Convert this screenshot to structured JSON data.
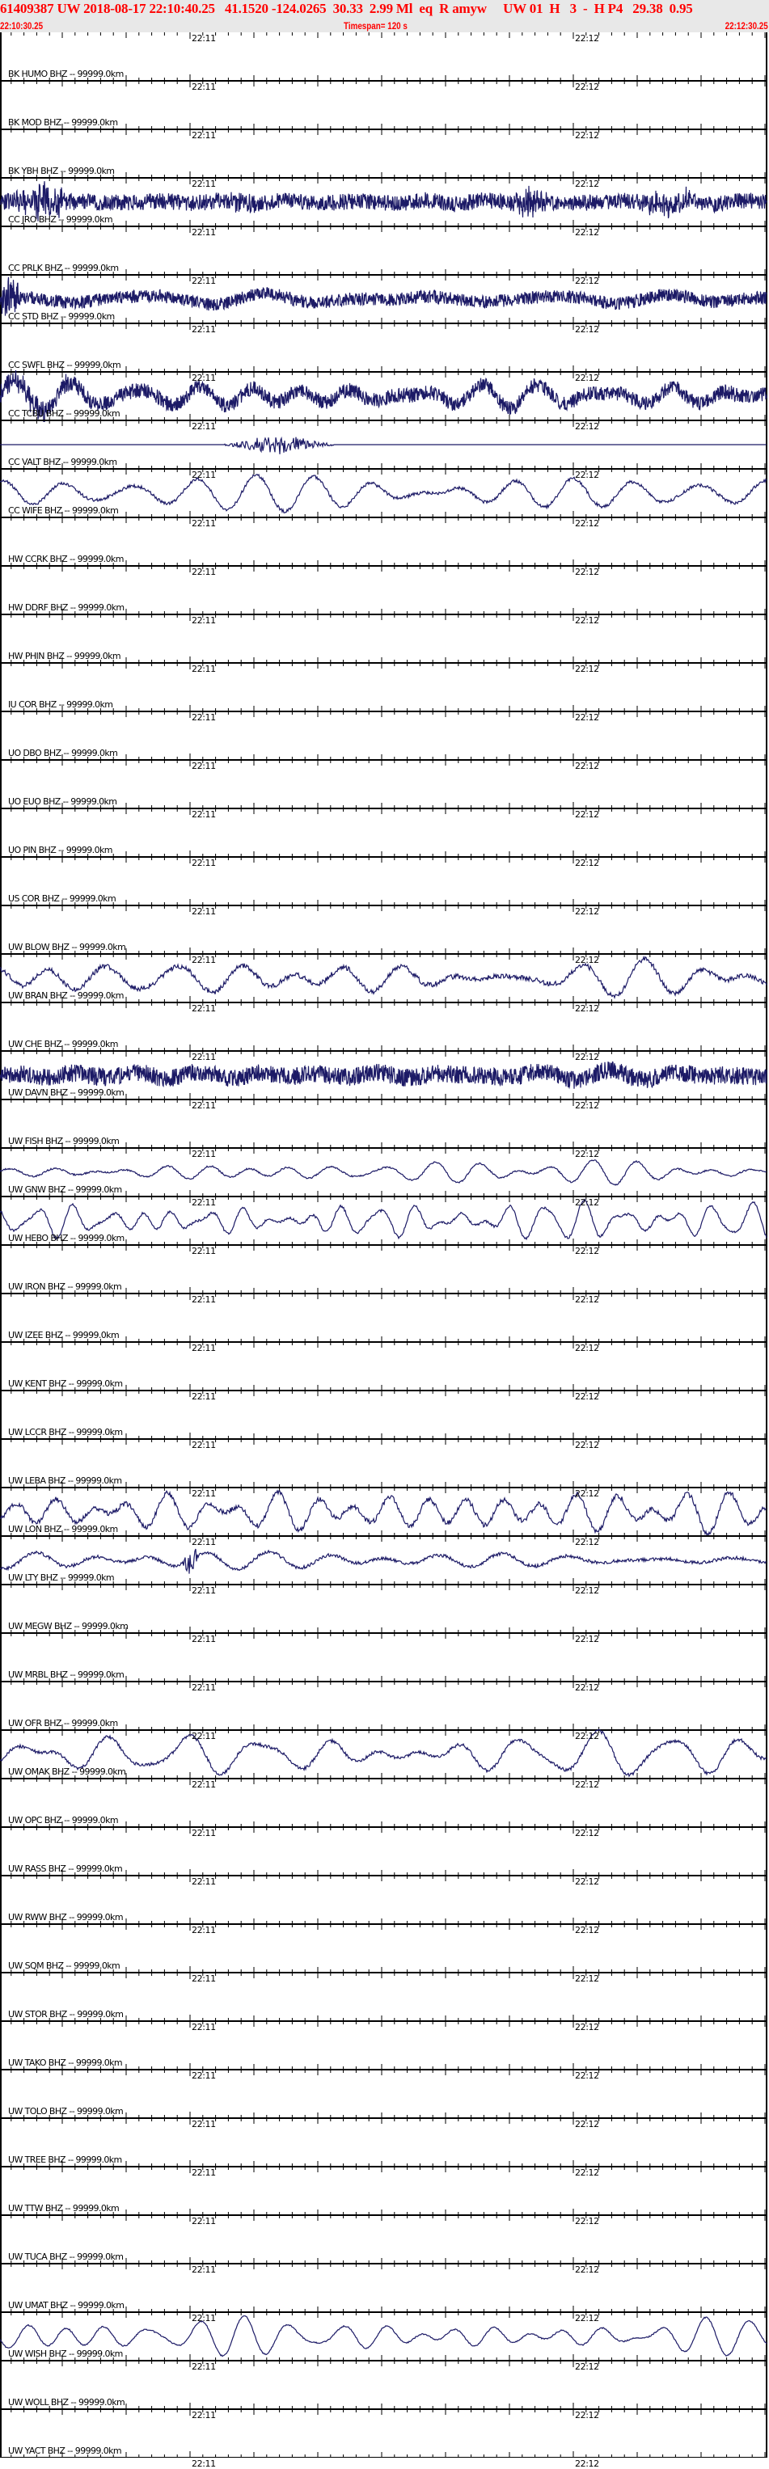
{
  "header": {
    "event_line": "61409387 UW 2018-08-17 22:10:40.25   41.1520 -124.0265  30.33  2.99 Ml  eq  R amyw     UW 01  H   3  -  H P4   29.38  0.95",
    "start_time": "22:10:30.25",
    "timespan": "Timespan= 120 s",
    "end_time": "22:12:30.25"
  },
  "axis": {
    "minute_labels": [
      "22:11",
      "22:12"
    ],
    "minute_offsets_s": [
      29.75,
      89.75
    ],
    "span_s": 120,
    "minor_tick_s": 2,
    "major_tick_s": 10
  },
  "colors": {
    "header_bg": "#e8e8e8",
    "header_text": "#ff0000",
    "trace": "#1c1a66",
    "axis": "#000000"
  },
  "channels": [
    {
      "label": "BK HUMO BHZ -- 99999.0km",
      "has_trace": false
    },
    {
      "label": "BK MOD BHZ -- 99999.0km",
      "has_trace": false
    },
    {
      "label": "BK YBH BHZ -- 99999.0km",
      "has_trace": true
    },
    {
      "label": "CC JRO BHZ -- 99999.0km",
      "has_trace": false
    },
    {
      "label": "CC PRLK BHZ -- 99999.0km",
      "has_trace": true
    },
    {
      "label": "CC STD BHZ -- 99999.0km",
      "has_trace": false
    },
    {
      "label": "CC SWFL BHZ -- 99999.0km",
      "has_trace": true
    },
    {
      "label": "CC TCBU BHZ -- 99999.0km",
      "has_trace": true
    },
    {
      "label": "CC VALT BHZ -- 99999.0km",
      "has_trace": true
    },
    {
      "label": "CC WIFE BHZ -- 99999.0km",
      "has_trace": false
    },
    {
      "label": "HW CCRK BHZ -- 99999.0km",
      "has_trace": false
    },
    {
      "label": "HW DDRF BHZ -- 99999.0km",
      "has_trace": false
    },
    {
      "label": "HW PHIN BHZ -- 99999.0km",
      "has_trace": false
    },
    {
      "label": "IU COR BHZ -- 99999.0km",
      "has_trace": false
    },
    {
      "label": "UO DBO BHZ -- 99999.0km",
      "has_trace": false
    },
    {
      "label": "UO EUO BHZ -- 99999.0km",
      "has_trace": false
    },
    {
      "label": "UO PIN BHZ -- 99999.0km",
      "has_trace": false
    },
    {
      "label": "US COR BHZ -- 99999.0km",
      "has_trace": false
    },
    {
      "label": "UW BLOW BHZ -- 99999.0km",
      "has_trace": true
    },
    {
      "label": "UW BRAN BHZ -- 99999.0km",
      "has_trace": false
    },
    {
      "label": "UW CHE BHZ -- 99999.0km",
      "has_trace": true
    },
    {
      "label": "UW DAVN BHZ -- 99999.0km",
      "has_trace": false
    },
    {
      "label": "UW FISH BHZ -- 99999.0km",
      "has_trace": true
    },
    {
      "label": "UW GNW BHZ -- 99999.0km",
      "has_trace": true
    },
    {
      "label": "UW HEBO BHZ -- 99999.0km",
      "has_trace": false
    },
    {
      "label": "UW IRON BHZ -- 99999.0km",
      "has_trace": false
    },
    {
      "label": "UW IZEE BHZ -- 99999.0km",
      "has_trace": false
    },
    {
      "label": "UW KENT BHZ -- 99999.0km",
      "has_trace": false
    },
    {
      "label": "UW LCCR BHZ -- 99999.0km",
      "has_trace": false
    },
    {
      "label": "UW LEBA BHZ -- 99999.0km",
      "has_trace": true
    },
    {
      "label": "UW LON BHZ -- 99999.0km",
      "has_trace": true
    },
    {
      "label": "UW LTY BHZ -- 99999.0km",
      "has_trace": false
    },
    {
      "label": "UW MEGW BHZ -- 99999.0km",
      "has_trace": false
    },
    {
      "label": "UW MRBL BHZ -- 99999.0km",
      "has_trace": false
    },
    {
      "label": "UW OFR BHZ -- 99999.0km",
      "has_trace": true
    },
    {
      "label": "UW OMAK BHZ -- 99999.0km",
      "has_trace": false
    },
    {
      "label": "UW OPC BHZ -- 99999.0km",
      "has_trace": false
    },
    {
      "label": "UW RASS BHZ -- 99999.0km",
      "has_trace": false
    },
    {
      "label": "UW RWW BHZ -- 99999.0km",
      "has_trace": false
    },
    {
      "label": "UW SQM BHZ -- 99999.0km",
      "has_trace": false
    },
    {
      "label": "UW STOR BHZ -- 99999.0km",
      "has_trace": false
    },
    {
      "label": "UW TAKO BHZ -- 99999.0km",
      "has_trace": false
    },
    {
      "label": "UW TOLO BHZ -- 99999.0km",
      "has_trace": false
    },
    {
      "label": "UW TREE BHZ -- 99999.0km",
      "has_trace": false
    },
    {
      "label": "UW TTW BHZ -- 99999.0km",
      "has_trace": false
    },
    {
      "label": "UW TUCA BHZ -- 99999.0km",
      "has_trace": false
    },
    {
      "label": "UW UMAT BHZ -- 99999.0km",
      "has_trace": true
    },
    {
      "label": "UW WISH BHZ -- 99999.0km",
      "has_trace": false
    },
    {
      "label": "UW WOLL BHZ -- 99999.0km",
      "has_trace": false
    },
    {
      "label": "UW YACT BHZ -- 99999.0km",
      "has_trace": false
    }
  ]
}
